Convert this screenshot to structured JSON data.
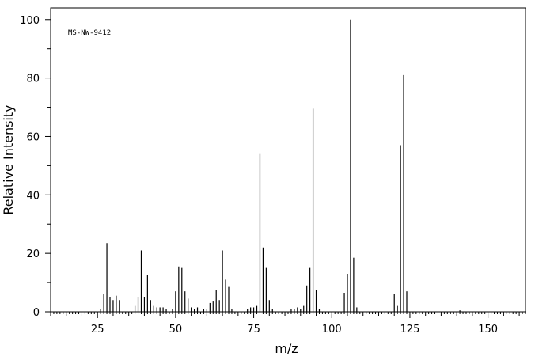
{
  "chart_data": {
    "type": "bar",
    "title": "",
    "annotation": "MS-NW-9412",
    "xlabel": "m/z",
    "ylabel": "Relative Intensity",
    "xlim": [
      10,
      162
    ],
    "ylim": [
      0,
      104
    ],
    "x_ticks": [
      25,
      50,
      75,
      100,
      125,
      150
    ],
    "y_ticks": [
      0,
      20,
      40,
      60,
      80,
      100
    ],
    "grid": false,
    "legend": "none",
    "series": [
      {
        "x": [
          26,
          27,
          28,
          29,
          30,
          31,
          32,
          37,
          38,
          39,
          40,
          41,
          42,
          43,
          44,
          45,
          46,
          47,
          49,
          50,
          51,
          52,
          53,
          54,
          55,
          56,
          57,
          59,
          60,
          61,
          62,
          63,
          64,
          65,
          66,
          67,
          68,
          73,
          74,
          75,
          76,
          77,
          78,
          79,
          80,
          81,
          87,
          88,
          89,
          90,
          91,
          92,
          93,
          94,
          95,
          96,
          104,
          105,
          106,
          107,
          108,
          120,
          121,
          122,
          123,
          124,
          141
        ],
        "values": [
          1,
          6,
          23.5,
          5,
          4,
          5.5,
          4,
          2,
          5,
          21,
          5,
          12.5,
          4,
          2,
          1.5,
          1.5,
          1.5,
          1,
          1,
          7,
          15.5,
          15,
          7,
          4.5,
          1.5,
          1,
          1.5,
          1,
          1,
          3,
          3.5,
          7.5,
          4,
          21,
          11,
          8.5,
          1,
          1,
          1.5,
          1.5,
          2,
          54,
          22,
          15,
          4,
          1,
          1,
          1,
          1.5,
          1,
          2,
          9,
          15,
          69.5,
          7.5,
          1,
          6.5,
          13,
          100,
          18.5,
          1.5,
          6,
          2,
          57,
          81,
          7,
          0.5
        ]
      }
    ]
  }
}
